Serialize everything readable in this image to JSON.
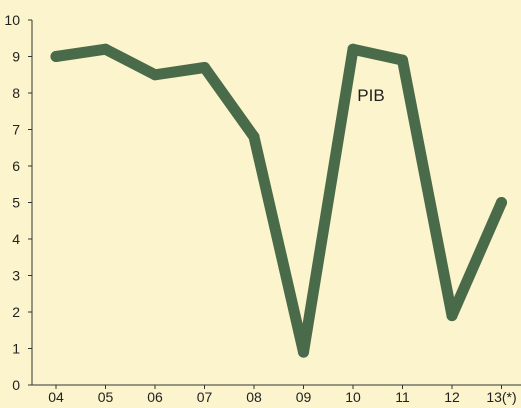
{
  "chart_data": {
    "type": "line",
    "categories": [
      "04",
      "05",
      "06",
      "07",
      "08",
      "09",
      "10",
      "11",
      "12",
      "13(*)"
    ],
    "series": [
      {
        "name": "PIB",
        "values": [
          9.0,
          9.2,
          8.5,
          8.7,
          6.8,
          0.9,
          9.2,
          8.9,
          1.9,
          5.0
        ]
      }
    ],
    "y_ticks": [
      "0",
      "1",
      "2",
      "3",
      "4",
      "5",
      "6",
      "7",
      "8",
      "9",
      "10"
    ],
    "ylim": [
      0,
      10
    ],
    "grid": false,
    "colors": {
      "background": "#fbf4cc",
      "line": "#4a6b4a",
      "axis": "#333333"
    }
  }
}
